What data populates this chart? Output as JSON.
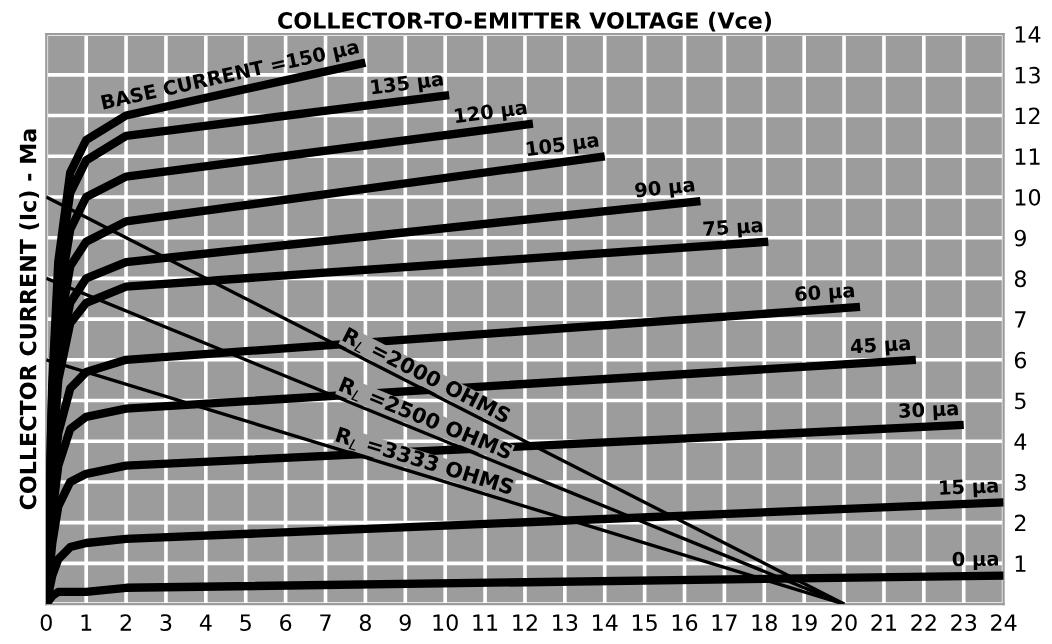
{
  "chart_data": {
    "type": "line",
    "xlabel": "COLLECTOR-TO-EMITTER VOLTAGE (Vce)",
    "ylabel": "COLLECTOR CURRENT (Ic) - Ma",
    "xlim": [
      0,
      24
    ],
    "xticks": [
      0,
      1,
      2,
      3,
      4,
      5,
      6,
      7,
      8,
      9,
      10,
      11,
      12,
      13,
      14,
      15,
      16,
      17,
      18,
      19,
      20,
      21,
      22,
      23,
      24
    ],
    "ylim": [
      0,
      14
    ],
    "yticks": [
      {
        "value": 0,
        "label": null
      },
      1,
      2,
      3,
      4,
      5,
      6,
      7,
      8,
      9,
      10,
      11,
      12,
      13,
      14
    ],
    "grid": true,
    "legend": false,
    "marker": "none",
    "line_style": "solid",
    "series": [
      {
        "name": "BASE CURRENT =150 µa",
        "color": "#000000",
        "x": [
          0,
          0.15,
          0.3,
          0.6,
          1,
          2,
          8.0
        ],
        "values": [
          0,
          5.4,
          8.4,
          10.6,
          11.4,
          12.0,
          13.3
        ]
      },
      {
        "name": "135 µa",
        "color": "#000000",
        "x": [
          0,
          0.15,
          0.3,
          0.6,
          1,
          2,
          10.1
        ],
        "values": [
          0,
          5.2,
          8.1,
          10.1,
          10.9,
          11.5,
          12.5
        ]
      },
      {
        "name": "120 µa",
        "color": "#000000",
        "x": [
          0,
          0.15,
          0.3,
          0.6,
          1,
          2,
          12.2
        ],
        "values": [
          0,
          4.7,
          7.4,
          9.2,
          10.0,
          10.5,
          11.8
        ]
      },
      {
        "name": "105 µa",
        "color": "#000000",
        "x": [
          0,
          0.15,
          0.3,
          0.6,
          1,
          2,
          14.0
        ],
        "values": [
          0,
          4.2,
          6.6,
          8.3,
          8.9,
          9.4,
          11.0
        ]
      },
      {
        "name": "90 µa",
        "color": "#000000",
        "x": [
          0,
          0.15,
          0.3,
          0.6,
          1,
          2,
          16.4
        ],
        "values": [
          0,
          3.8,
          5.9,
          7.4,
          8.0,
          8.4,
          9.9
        ]
      },
      {
        "name": "75 µa",
        "color": "#000000",
        "x": [
          0,
          0.15,
          0.3,
          0.6,
          1,
          2,
          18.1
        ],
        "values": [
          0,
          3.5,
          5.5,
          6.9,
          7.4,
          7.8,
          8.9
        ]
      },
      {
        "name": "60 µa",
        "color": "#000000",
        "x": [
          0,
          0.15,
          0.3,
          0.6,
          1,
          2,
          20.4
        ],
        "values": [
          0,
          2.7,
          4.2,
          5.3,
          5.7,
          6.0,
          7.3
        ]
      },
      {
        "name": "45 µa",
        "color": "#000000",
        "x": [
          0,
          0.15,
          0.3,
          0.6,
          1,
          2,
          21.8
        ],
        "values": [
          0,
          2.2,
          3.4,
          4.3,
          4.6,
          4.8,
          6.0
        ]
      },
      {
        "name": "30 µa",
        "color": "#000000",
        "x": [
          0,
          0.15,
          0.3,
          0.6,
          1,
          2,
          23.0
        ],
        "values": [
          0,
          1.5,
          2.4,
          3.0,
          3.2,
          3.4,
          4.4
        ]
      },
      {
        "name": "15 µa",
        "color": "#000000",
        "x": [
          0,
          0.15,
          0.3,
          0.6,
          1,
          2,
          24.0
        ],
        "values": [
          0,
          0.7,
          1.1,
          1.4,
          1.5,
          1.6,
          2.5
        ]
      },
      {
        "name": "0 µa",
        "color": "#000000",
        "x": [
          0,
          0.15,
          0.3,
          0.6,
          1,
          2,
          24.0
        ],
        "values": [
          0,
          0.2,
          0.3,
          0.3,
          0.3,
          0.4,
          0.7
        ]
      },
      {
        "name": "R$_{L}$ =2000 OHMS",
        "color": "#000000",
        "x": [
          0,
          10,
          20
        ],
        "values": [
          10,
          5,
          0
        ]
      },
      {
        "name": "R$_{L}$ =2500 OHMS",
        "color": "#000000",
        "x": [
          0,
          10,
          20
        ],
        "values": [
          8,
          4,
          0
        ]
      },
      {
        "name": "R$_{L}$ =3333 OHMS",
        "color": "#000000",
        "x": [
          0,
          10,
          20
        ],
        "values": [
          6,
          3,
          0
        ]
      }
    ]
  }
}
